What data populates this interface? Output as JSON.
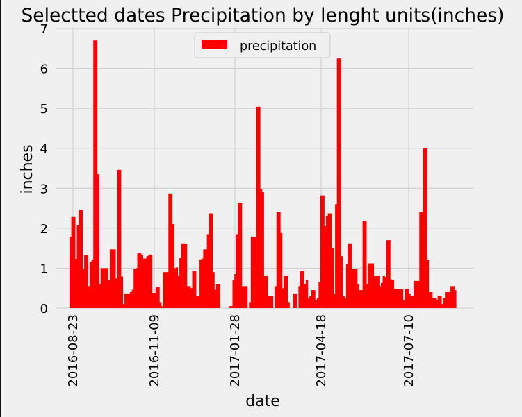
{
  "chart_data": {
    "type": "bar",
    "title": "Selectted dates Precipitation by lenght units(inches)",
    "xlabel": "date",
    "ylabel": "inches",
    "ylim": [
      0,
      7
    ],
    "yticks": [
      0,
      1,
      2,
      3,
      4,
      5,
      6,
      7
    ],
    "xticks": [
      "2016-08-23",
      "2016-11-09",
      "2017-01-28",
      "2017-04-18",
      "2017-07-10"
    ],
    "grid": true,
    "legend_position": "top-center",
    "bar_color": "#ff0000",
    "series": [
      {
        "name": "precipitation",
        "values": [
          1.79,
          2.28,
          2.28,
          1.22,
          2.07,
          2.45,
          2.45,
          0.98,
          1.32,
          1.32,
          0.55,
          1.15,
          1.2,
          6.7,
          6.7,
          3.35,
          0.6,
          1.0,
          1.0,
          1.0,
          1.0,
          0.7,
          1.47,
          1.47,
          1.47,
          0.74,
          3.46,
          3.46,
          0.79,
          0.1,
          0.35,
          0.35,
          0.35,
          0.4,
          0.46,
          0.98,
          1.0,
          1.37,
          1.37,
          1.34,
          1.24,
          1.24,
          1.3,
          1.34,
          1.34,
          0.38,
          0.38,
          0.52,
          0.52,
          0.15,
          0.05,
          0.9,
          0.9,
          0.9,
          2.87,
          2.87,
          2.1,
          1.0,
          1.02,
          0.8,
          1.25,
          1.62,
          1.62,
          1.6,
          0.55,
          0.55,
          0.5,
          0.92,
          0.92,
          0.3,
          0.3,
          1.2,
          1.24,
          1.47,
          1.47,
          1.85,
          2.37,
          2.37,
          0.9,
          0.46,
          0.6,
          0.6,
          0.0,
          0.0,
          0.0,
          0.0,
          0.0,
          0.05,
          0.05,
          0.7,
          0.85,
          1.85,
          2.64,
          2.64,
          0.55,
          0.55,
          0.55,
          0.0,
          0.15,
          1.79,
          1.79,
          1.79,
          5.04,
          5.04,
          2.98,
          2.9,
          0.8,
          0.8,
          0.3,
          0.3,
          0.3,
          0.0,
          0.55,
          2.4,
          2.4,
          1.88,
          0.5,
          0.8,
          0.8,
          0.15,
          0.0,
          0.0,
          0.35,
          0.35,
          0.0,
          0.55,
          0.92,
          0.92,
          0.6,
          0.7,
          0.25,
          0.3,
          0.45,
          0.45,
          0.2,
          0.25,
          0.65,
          2.82,
          2.82,
          2.05,
          2.3,
          2.37,
          2.37,
          1.5,
          0.35,
          2.6,
          6.25,
          6.25,
          1.3,
          0.3,
          0.25,
          1.1,
          1.62,
          1.62,
          0.98,
          0.98,
          0.98,
          0.6,
          0.45,
          0.45,
          2.18,
          2.18,
          0.6,
          1.12,
          1.12,
          1.12,
          0.8,
          0.8,
          0.8,
          0.55,
          0.63,
          0.8,
          0.78,
          1.7,
          1.7,
          0.72,
          0.7,
          0.48,
          0.48,
          0.48,
          0.48,
          0.48,
          0.2,
          0.48,
          0.48,
          0.35,
          0.3,
          0.3,
          0.68,
          0.68,
          0.68,
          2.4,
          2.4,
          4.0,
          4.0,
          1.2,
          0.4,
          0.4,
          0.25,
          0.25,
          0.2,
          0.3,
          0.3,
          0.1,
          0.25,
          0.4,
          0.4,
          0.4,
          0.55,
          0.55,
          0.45
        ]
      }
    ]
  }
}
